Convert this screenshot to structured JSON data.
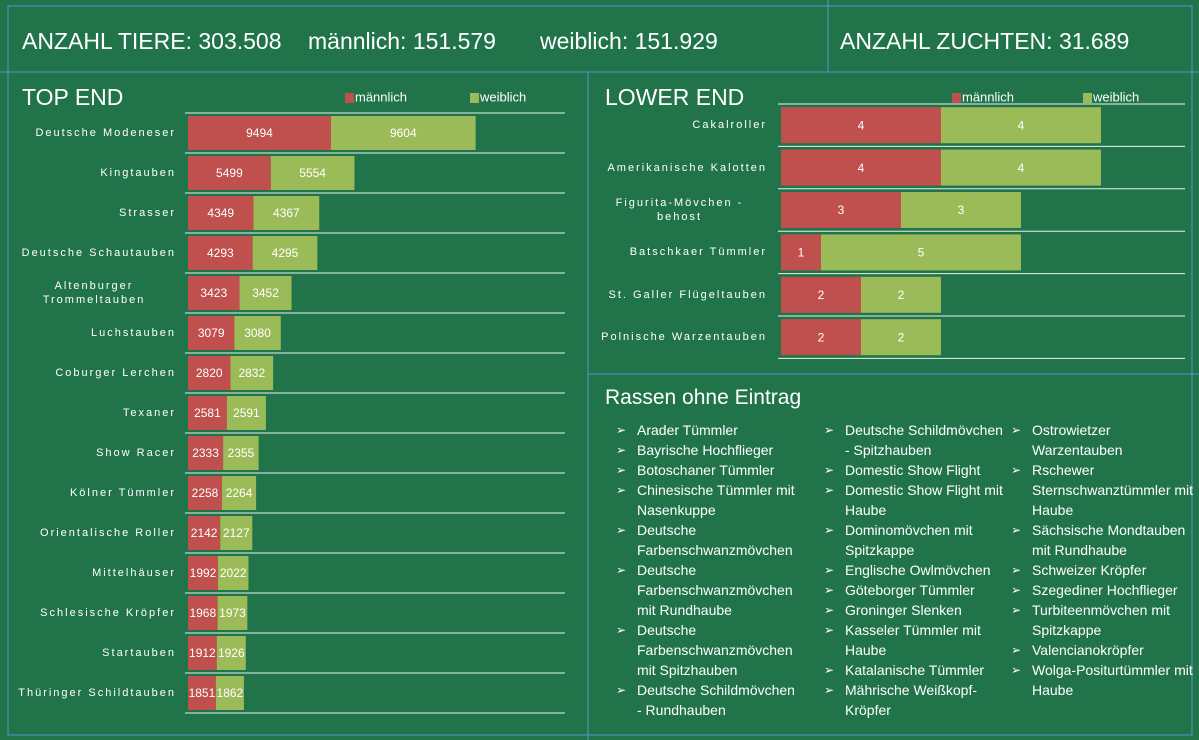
{
  "header": {
    "total": "ANZAHL TIERE: 303.508",
    "male": "männlich: 151.579",
    "female": "weiblich: 151.929",
    "breedings": "ANZAHL ZUCHTEN: 31.689"
  },
  "chart_data": [
    {
      "type": "bar",
      "orientation": "horizontal",
      "stacked": true,
      "title": "TOP END",
      "categories": [
        "Deutsche Modeneser",
        "Kingtauben",
        "Strasser",
        "Deutsche Schautauben",
        "Altenburger Trommeltauben",
        "Luchstauben",
        "Coburger Lerchen",
        "Texaner",
        "Show Racer",
        "Kölner Tümmler",
        "Orientalische Roller",
        "Mittelhäuser",
        "Schlesische Kröpfer",
        "Startauben",
        "Thüringer Schildtauben"
      ],
      "series": [
        {
          "name": "männlich",
          "color": "#c0504d",
          "values": [
            9494,
            5499,
            4349,
            4293,
            3423,
            3079,
            2820,
            2581,
            2333,
            2258,
            2142,
            1992,
            1968,
            1912,
            1851
          ]
        },
        {
          "name": "weiblich",
          "color": "#9bbb59",
          "values": [
            9604,
            5554,
            4367,
            4295,
            3452,
            3080,
            2832,
            2591,
            2355,
            2264,
            2127,
            2022,
            1973,
            1926,
            1862
          ]
        }
      ]
    },
    {
      "type": "bar",
      "orientation": "horizontal",
      "stacked": true,
      "title": "LOWER END",
      "categories": [
        "Cakalroller",
        "Amerikanische Kalotten",
        "Figurita-Mövchen - behost",
        "Batschkaer Tümmler",
        "St. Galler Flügeltauben",
        "Polnische Warzentauben"
      ],
      "series": [
        {
          "name": "männlich",
          "color": "#c0504d",
          "values": [
            4,
            4,
            3,
            1,
            2,
            2
          ]
        },
        {
          "name": "weiblich",
          "color": "#9bbb59",
          "values": [
            4,
            4,
            3,
            5,
            2,
            2
          ]
        }
      ]
    }
  ],
  "list": {
    "title": "Rassen ohne Eintrag",
    "items": [
      "Arader Tümmler",
      "Bayrische Hochflieger",
      "Botoschaner Tümmler",
      "Chinesische Tümmler mit Nasenkuppe",
      "Deutsche Farbenschwanzmövchen",
      "Deutsche Farbenschwanzmövchen mit Rundhaube",
      "Deutsche Farbenschwanzmövchen mit Spitzhauben",
      "Deutsche Schildmövchen - Rundhauben",
      "Deutsche Schildmövchen - Spitzhauben",
      "Domestic Show Flight",
      "Domestic Show Flight mit Haube",
      "Dominomövchen mit Spitzkappe",
      "Englische Owlmövchen",
      "Göteborger Tümmler",
      "Groninger Slenken",
      "Kasseler Tümmler mit Haube",
      "Katalanische Tümmler",
      "Mährische Weißkopf-Kröpfer",
      "Ostrowietzer Warzentauben",
      "Rschewer Sternschwanztümmler mit Haube",
      "Sächsische Mondtauben mit Rundhaube",
      "Schweizer Kröpfer",
      "Szegediner Hochflieger",
      "Turbiteenmövchen mit Spitzkappe",
      "Valencianokröpfer",
      "Wolga-Positurtümmler mit Haube"
    ]
  }
}
